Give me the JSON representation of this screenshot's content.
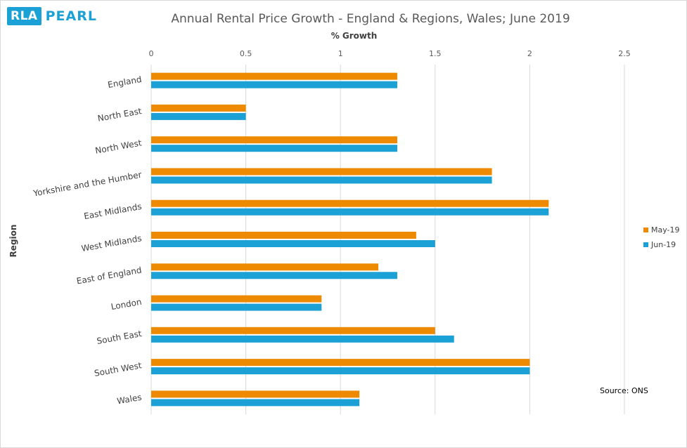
{
  "logo": {
    "box_text": "RLA",
    "word": "PEARL"
  },
  "source_note": "Source: ONS",
  "colors": {
    "may": "#ee8a00",
    "jun": "#1ba1d5",
    "grid": "#d9d9d9"
  },
  "chart_data": {
    "type": "bar",
    "orientation": "horizontal",
    "title": "Annual Rental Price Growth - England & Regions, Wales; June 2019",
    "xlabel": "% Growth",
    "ylabel": "Region",
    "xlim": [
      0,
      2.5
    ],
    "xticks": [
      "0",
      "0.5",
      "1",
      "1.5",
      "2",
      "2.5"
    ],
    "grid": true,
    "legend_position": "right",
    "categories": [
      "England",
      "North East",
      "North West",
      "Yorkshire and the Humber",
      "East Midlands",
      "West Midlands",
      "East of England",
      "London",
      "South East",
      "South West",
      "Wales"
    ],
    "series": [
      {
        "name": "May-19",
        "values": [
          1.3,
          0.5,
          1.3,
          1.8,
          2.1,
          1.4,
          1.2,
          0.9,
          1.5,
          2.0,
          1.1
        ]
      },
      {
        "name": "Jun-19",
        "values": [
          1.3,
          0.5,
          1.3,
          1.8,
          2.1,
          1.5,
          1.3,
          0.9,
          1.6,
          2.0,
          1.1
        ]
      }
    ]
  }
}
